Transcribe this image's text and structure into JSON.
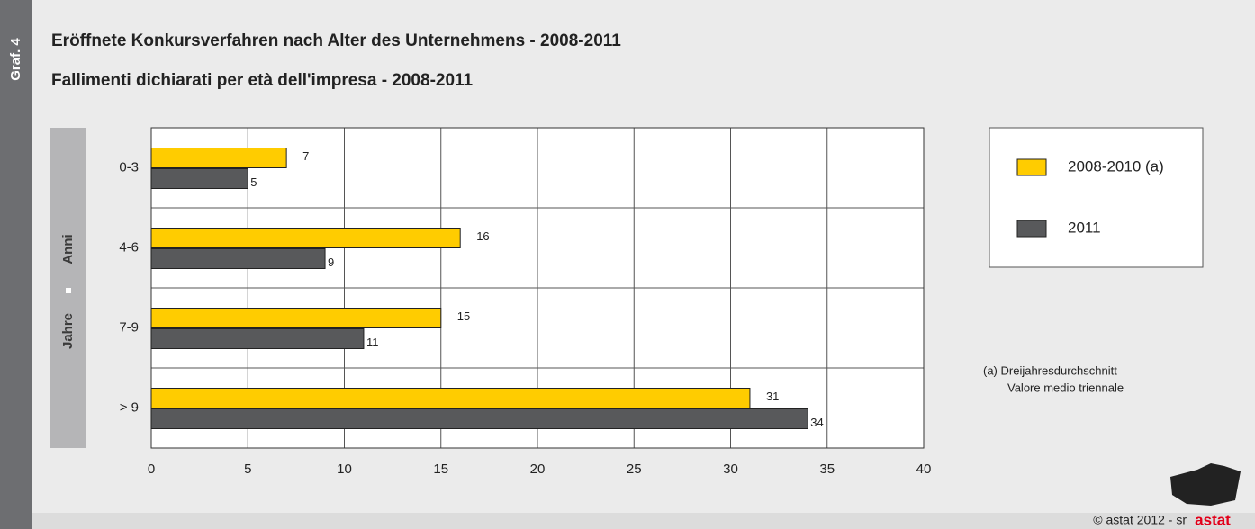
{
  "chart_data": {
    "type": "hbar",
    "label": "Graf. 4",
    "title": "Eröffnete Konkursverfahren nach Alter des Unternehmens - 2008-2011",
    "subtitle": "Fallimenti dichiarati per età dell'impresa - 2008-2011",
    "ylabel": [
      "Jahre",
      "Anni"
    ],
    "categories": [
      "0-3",
      "4-6",
      "7-9",
      "> 9"
    ],
    "series": [
      {
        "name": "2008-2010 (a)",
        "color": "#ffcc00",
        "values": [
          7,
          16,
          15,
          31
        ]
      },
      {
        "name": "2011",
        "color": "#58595b",
        "values": [
          5,
          9,
          11,
          34
        ]
      }
    ],
    "xlim": [
      0,
      40
    ],
    "xticks": [
      0,
      5,
      10,
      15,
      20,
      25,
      30,
      35,
      40
    ],
    "grid": true,
    "note": [
      "(a) Dreijahresdurchschnitt",
      "Valore medio triennale"
    ],
    "footer": "© astat 2012 - sr",
    "logo": "astat"
  }
}
